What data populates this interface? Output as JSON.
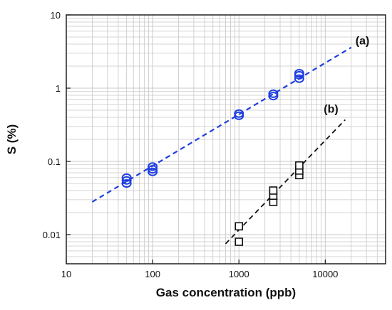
{
  "chart_data": {
    "type": "scatter",
    "xlabel": "Gas concentration (ppb)",
    "ylabel": "S (%)",
    "xscale": "log",
    "yscale": "log",
    "xlim": [
      10,
      50000
    ],
    "ylim": [
      0.004,
      10
    ],
    "grid": true,
    "x_ticks": [
      10,
      100,
      1000,
      10000
    ],
    "x_tick_labels": [
      "10",
      "100",
      "1000",
      "10000"
    ],
    "y_ticks": [
      0.01,
      0.1,
      1,
      10
    ],
    "y_tick_labels": [
      "0.01",
      "0.1",
      "1",
      "10"
    ],
    "series": [
      {
        "name": "(a)",
        "marker": "circle",
        "color": "#1f3fe0",
        "points": [
          {
            "x": 50,
            "y": 0.05
          },
          {
            "x": 50,
            "y": 0.055
          },
          {
            "x": 50,
            "y": 0.06
          },
          {
            "x": 100,
            "y": 0.072
          },
          {
            "x": 100,
            "y": 0.078
          },
          {
            "x": 100,
            "y": 0.085
          },
          {
            "x": 1000,
            "y": 0.42
          },
          {
            "x": 1000,
            "y": 0.45
          },
          {
            "x": 2500,
            "y": 0.78
          },
          {
            "x": 2500,
            "y": 0.84
          },
          {
            "x": 5000,
            "y": 1.35
          },
          {
            "x": 5000,
            "y": 1.5
          },
          {
            "x": 5000,
            "y": 1.6
          }
        ],
        "fit": [
          {
            "x": 20,
            "y": 0.028
          },
          {
            "x": 20000,
            "y": 3.6
          }
        ]
      },
      {
        "name": "(b)",
        "marker": "square",
        "color": "#111111",
        "points": [
          {
            "x": 1000,
            "y": 0.008
          },
          {
            "x": 1000,
            "y": 0.013
          },
          {
            "x": 2500,
            "y": 0.028
          },
          {
            "x": 2500,
            "y": 0.034
          },
          {
            "x": 2500,
            "y": 0.04
          },
          {
            "x": 5000,
            "y": 0.065
          },
          {
            "x": 5000,
            "y": 0.075
          },
          {
            "x": 5000,
            "y": 0.088
          }
        ],
        "fit": [
          {
            "x": 700,
            "y": 0.0075
          },
          {
            "x": 17000,
            "y": 0.37
          }
        ]
      }
    ]
  }
}
